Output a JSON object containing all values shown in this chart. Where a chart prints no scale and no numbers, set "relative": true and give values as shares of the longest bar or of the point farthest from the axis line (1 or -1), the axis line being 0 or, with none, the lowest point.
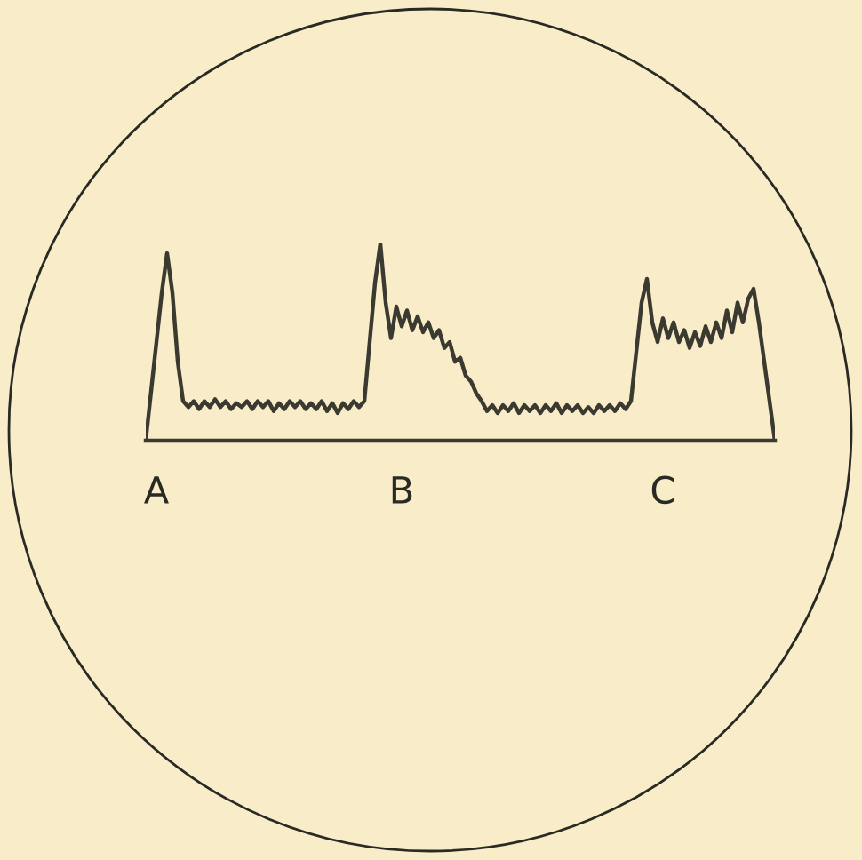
{
  "chart_data": {
    "type": "line",
    "relative": true,
    "grid": false,
    "categories": [
      null,
      null,
      "A",
      null,
      null,
      null,
      null,
      null,
      null,
      null,
      null,
      null,
      null,
      null,
      null,
      null,
      null,
      null,
      null,
      null,
      null,
      null,
      null,
      null,
      null,
      null,
      null,
      null,
      null,
      null,
      null,
      null,
      null,
      null,
      null,
      null,
      null,
      null,
      null,
      null,
      null,
      null,
      null,
      null,
      null,
      null,
      null,
      null,
      "B",
      null,
      null,
      null,
      null,
      null,
      null,
      null,
      null,
      null,
      null,
      null,
      null,
      null,
      null,
      null,
      null,
      null,
      null,
      null,
      null,
      null,
      null,
      null,
      null,
      null,
      null,
      null,
      null,
      null,
      null,
      null,
      null,
      null,
      null,
      null,
      null,
      null,
      null,
      null,
      null,
      null,
      null,
      null,
      null,
      null,
      null,
      null,
      null,
      "C",
      null,
      null,
      null,
      null,
      null,
      null,
      null,
      null,
      null,
      null,
      null,
      null,
      null,
      null,
      null,
      null,
      null,
      null,
      null,
      null,
      null
    ],
    "series": [
      {
        "color": "#3b3a30",
        "values": [
          0,
          0.25,
          0.5,
          0.75,
          0.95,
          0.75,
          0.4,
          0.2,
          0.17,
          0.2,
          0.16,
          0.2,
          0.17,
          0.21,
          0.17,
          0.2,
          0.16,
          0.19,
          0.17,
          0.2,
          0.16,
          0.2,
          0.17,
          0.2,
          0.15,
          0.19,
          0.16,
          0.2,
          0.17,
          0.2,
          0.16,
          0.19,
          0.16,
          0.2,
          0.15,
          0.19,
          0.14,
          0.19,
          0.16,
          0.2,
          0.17,
          0.2,
          0.5,
          0.8,
          1,
          0.7,
          0.52,
          0.68,
          0.58,
          0.66,
          0.56,
          0.63,
          0.55,
          0.6,
          0.52,
          0.56,
          0.47,
          0.5,
          0.4,
          0.42,
          0.33,
          0.3,
          0.24,
          0.2,
          0.15,
          0.18,
          0.14,
          0.18,
          0.15,
          0.19,
          0.14,
          0.18,
          0.15,
          0.18,
          0.14,
          0.18,
          0.15,
          0.19,
          0.14,
          0.18,
          0.15,
          0.18,
          0.14,
          0.17,
          0.14,
          0.18,
          0.15,
          0.18,
          0.15,
          0.19,
          0.16,
          0.2,
          0.45,
          0.7,
          0.82,
          0.6,
          0.5,
          0.62,
          0.52,
          0.6,
          0.5,
          0.56,
          0.47,
          0.55,
          0.48,
          0.58,
          0.5,
          0.6,
          0.52,
          0.66,
          0.55,
          0.7,
          0.6,
          0.72,
          0.77,
          0.6,
          0.4,
          0.2,
          0
        ]
      }
    ]
  }
}
